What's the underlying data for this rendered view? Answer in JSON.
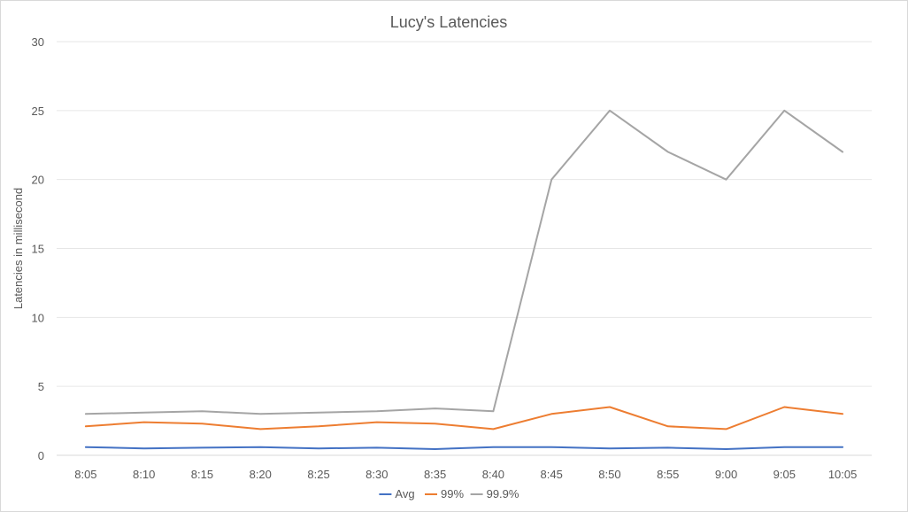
{
  "chart_data": {
    "type": "line",
    "title": "Lucy's Latencies",
    "xlabel": "",
    "ylabel": "Latencies in millisecond",
    "categories": [
      "8:05",
      "8:10",
      "8:15",
      "8:20",
      "8:25",
      "8:30",
      "8:35",
      "8:40",
      "8:45",
      "8:50",
      "8:55",
      "9:00",
      "9:05",
      "10:05"
    ],
    "ylim": [
      0,
      30
    ],
    "yticks": [
      "0",
      "5",
      "10",
      "15",
      "20",
      "25",
      "30"
    ],
    "grid": true,
    "legend_position": "bottom",
    "series": [
      {
        "name": "Avg",
        "color": "#4472C4",
        "values": [
          0.6,
          0.5,
          0.55,
          0.6,
          0.5,
          0.55,
          0.45,
          0.6,
          0.6,
          0.5,
          0.55,
          0.45,
          0.6,
          0.6
        ]
      },
      {
        "name": "99%",
        "color": "#ED7D31",
        "values": [
          2.1,
          2.4,
          2.3,
          1.9,
          2.1,
          2.4,
          2.3,
          1.9,
          3.0,
          3.5,
          2.1,
          1.9,
          3.5,
          3.0
        ]
      },
      {
        "name": "99.9%",
        "color": "#A5A5A5",
        "values": [
          3.0,
          3.1,
          3.2,
          3.0,
          3.1,
          3.2,
          3.4,
          3.2,
          20,
          25,
          22,
          20,
          25,
          22
        ]
      }
    ]
  }
}
